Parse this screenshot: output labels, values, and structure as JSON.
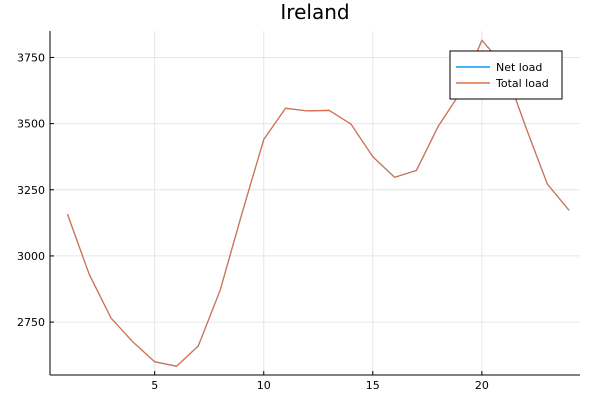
{
  "chart_data": {
    "type": "line",
    "title": "Ireland",
    "xlabel": "",
    "ylabel": "",
    "x": [
      1,
      2,
      3,
      4,
      5,
      6,
      7,
      8,
      9,
      10,
      11,
      12,
      13,
      14,
      15,
      16,
      17,
      18,
      19,
      20,
      21,
      22,
      23,
      24
    ],
    "xlim": [
      0.2,
      24.5
    ],
    "ylim": [
      2550,
      3850
    ],
    "xticks": [
      5,
      10,
      15,
      20
    ],
    "yticks": [
      2750,
      3000,
      3250,
      3500,
      3750
    ],
    "grid": true,
    "legend_position": "top-right",
    "series": [
      {
        "name": "Net load",
        "color": "#009AFA",
        "values": [
          3158,
          2930,
          2765,
          2675,
          2600,
          2583,
          2660,
          2870,
          3160,
          3440,
          3558,
          3548,
          3550,
          3498,
          3375,
          3297,
          3323,
          3490,
          3615,
          3815,
          3720,
          3490,
          3272,
          3172
        ]
      },
      {
        "name": "Total load",
        "color": "#E26F46",
        "values": [
          3158,
          2930,
          2765,
          2675,
          2600,
          2583,
          2660,
          2870,
          3160,
          3440,
          3558,
          3548,
          3550,
          3498,
          3375,
          3297,
          3323,
          3490,
          3615,
          3815,
          3720,
          3490,
          3272,
          3172
        ]
      }
    ]
  }
}
